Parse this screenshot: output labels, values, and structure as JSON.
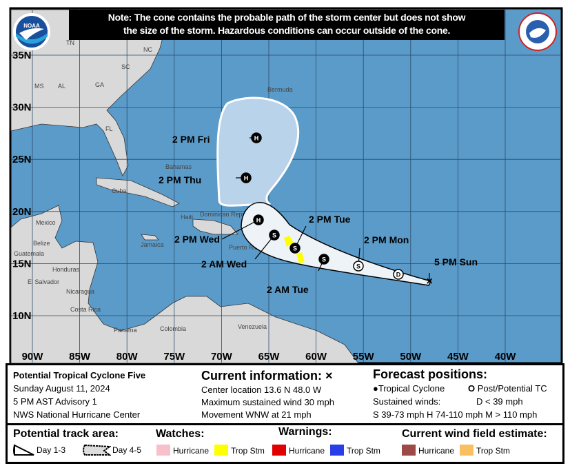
{
  "note": {
    "line1": "Note: The cone contains the probable path of the storm center but does not show",
    "line2": "the size of the storm. Hazardous conditions can occur outside of the cone."
  },
  "logos": {
    "left": "NOAA",
    "right": "NATIONAL WEATHER SERVICE"
  },
  "map": {
    "lat_labels": [
      "35N",
      "30N",
      "25N",
      "20N",
      "15N",
      "10N"
    ],
    "lon_labels": [
      "90W",
      "85W",
      "80W",
      "75W",
      "70W",
      "65W",
      "60W",
      "55W",
      "50W",
      "45W",
      "40W"
    ],
    "place_labels": [
      "TN",
      "NC",
      "SC",
      "MS",
      "AL",
      "GA",
      "FL",
      "Bermuda",
      "Bahamas",
      "Cuba",
      "Mexico",
      "Belize",
      "Guatemala",
      "Honduras",
      "El Salvador",
      "Nicaragua",
      "Costa Rica",
      "Panama",
      "Colombia",
      "Venezuela",
      "Jamaica",
      "Haiti",
      "Dominican Republic",
      "Puerto Rico"
    ],
    "colors": {
      "ocean": "#5b9bc9",
      "land": "#d9d9d9",
      "cone_day13": "#eef3f8",
      "cone_day45": "#b9d3ea",
      "watch_trop_stm": "#ffff00"
    },
    "forecast_points": [
      {
        "label": "5 PM Sun",
        "type": "current",
        "lat": 13.6,
        "lon": -48.0
      },
      {
        "label": "",
        "type": "D",
        "open": true
      },
      {
        "label": "2 PM Mon",
        "type": "S",
        "open": true
      },
      {
        "label": "2 AM Tue",
        "type": "S",
        "open": false
      },
      {
        "label": "2 PM Tue",
        "type": "S",
        "open": false
      },
      {
        "label": "2 AM Wed",
        "type": "S",
        "open": false
      },
      {
        "label": "2 PM Wed",
        "type": "H",
        "open": false
      },
      {
        "label": "2 PM Thu",
        "type": "H",
        "open": false
      },
      {
        "label": "2 PM Fri",
        "type": "H",
        "open": false
      }
    ]
  },
  "info": {
    "storm_name": "Potential Tropical Cyclone Five",
    "date": "Sunday August 11, 2024",
    "advisory": "5 PM AST Advisory 1",
    "center": "NWS National Hurricane Center",
    "current_title": "Current information: ×",
    "location": "Center location 13.6 N 48.0 W",
    "max_wind": "Maximum sustained wind 30 mph",
    "movement": "Movement WNW at 21 mph",
    "forecast_title": "Forecast positions:",
    "tc": "Tropical Cyclone",
    "ptc": "Post/Potential TC",
    "sustained": "Sustained winds:",
    "d": "D < 39 mph",
    "shm": "S 39-73 mph  H 74-110 mph  M > 110 mph"
  },
  "legend": {
    "track_title": "Potential track area:",
    "day13": "Day 1-3",
    "day45": "Day 4-5",
    "watches_title": "Watches:",
    "warnings_title": "Warnings:",
    "wind_title": "Current wind field estimate:",
    "items": [
      {
        "label": "Hurricane",
        "color": "#f8c0cb"
      },
      {
        "label": "Trop Stm",
        "color": "#ffff00"
      },
      {
        "label": "Hurricane",
        "color": "#e00000"
      },
      {
        "label": "Trop Stm",
        "color": "#2a3ee8"
      },
      {
        "label": "Hurricane",
        "color": "#9c4a48"
      },
      {
        "label": "Trop Stm",
        "color": "#f8c060"
      }
    ]
  }
}
